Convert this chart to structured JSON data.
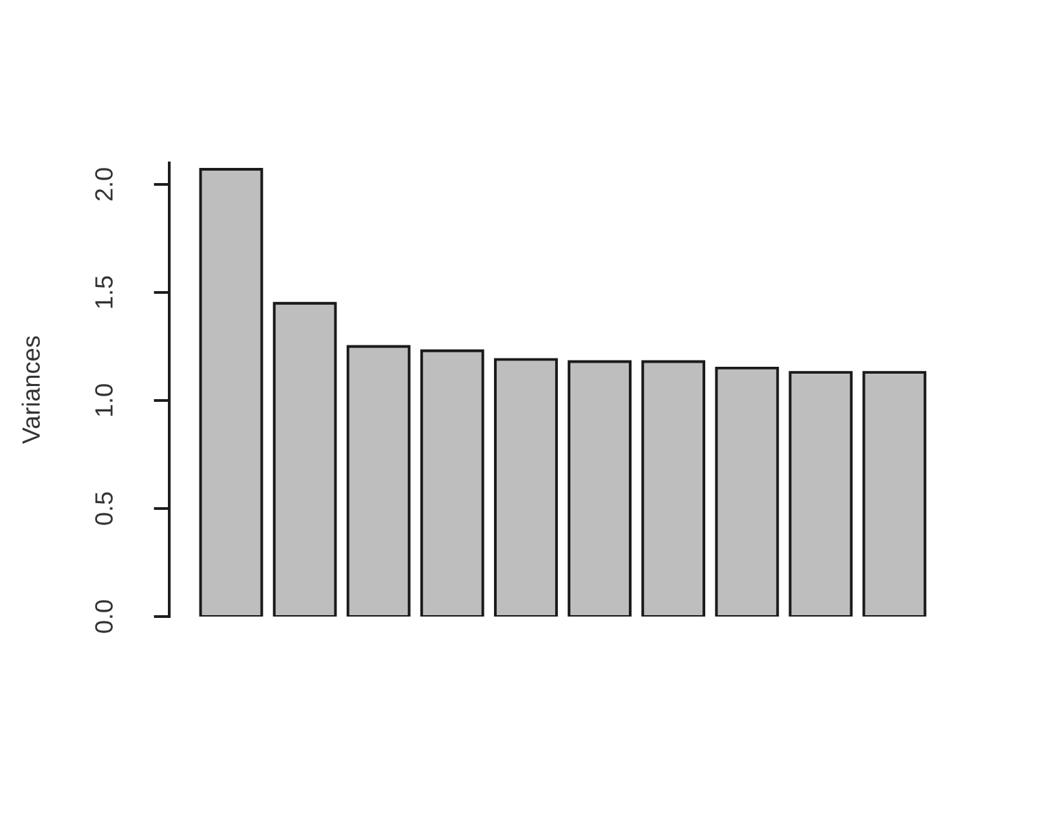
{
  "chart_data": {
    "type": "bar",
    "ylabel": "Variances",
    "categories": [
      null,
      null,
      null,
      null,
      null,
      null,
      null,
      null,
      null,
      null
    ],
    "values": [
      2.07,
      1.45,
      1.25,
      1.23,
      1.19,
      1.18,
      1.18,
      1.15,
      1.13,
      1.13
    ],
    "color": "#bebebe",
    "ylim": [
      0,
      2.1
    ],
    "yticks": [
      {
        "value": 0,
        "label": "0.0"
      },
      0.5,
      {
        "value": 1,
        "label": "1.0"
      },
      1.5,
      {
        "value": 2,
        "label": "2.0"
      }
    ],
    "tick_labels": "y"
  }
}
